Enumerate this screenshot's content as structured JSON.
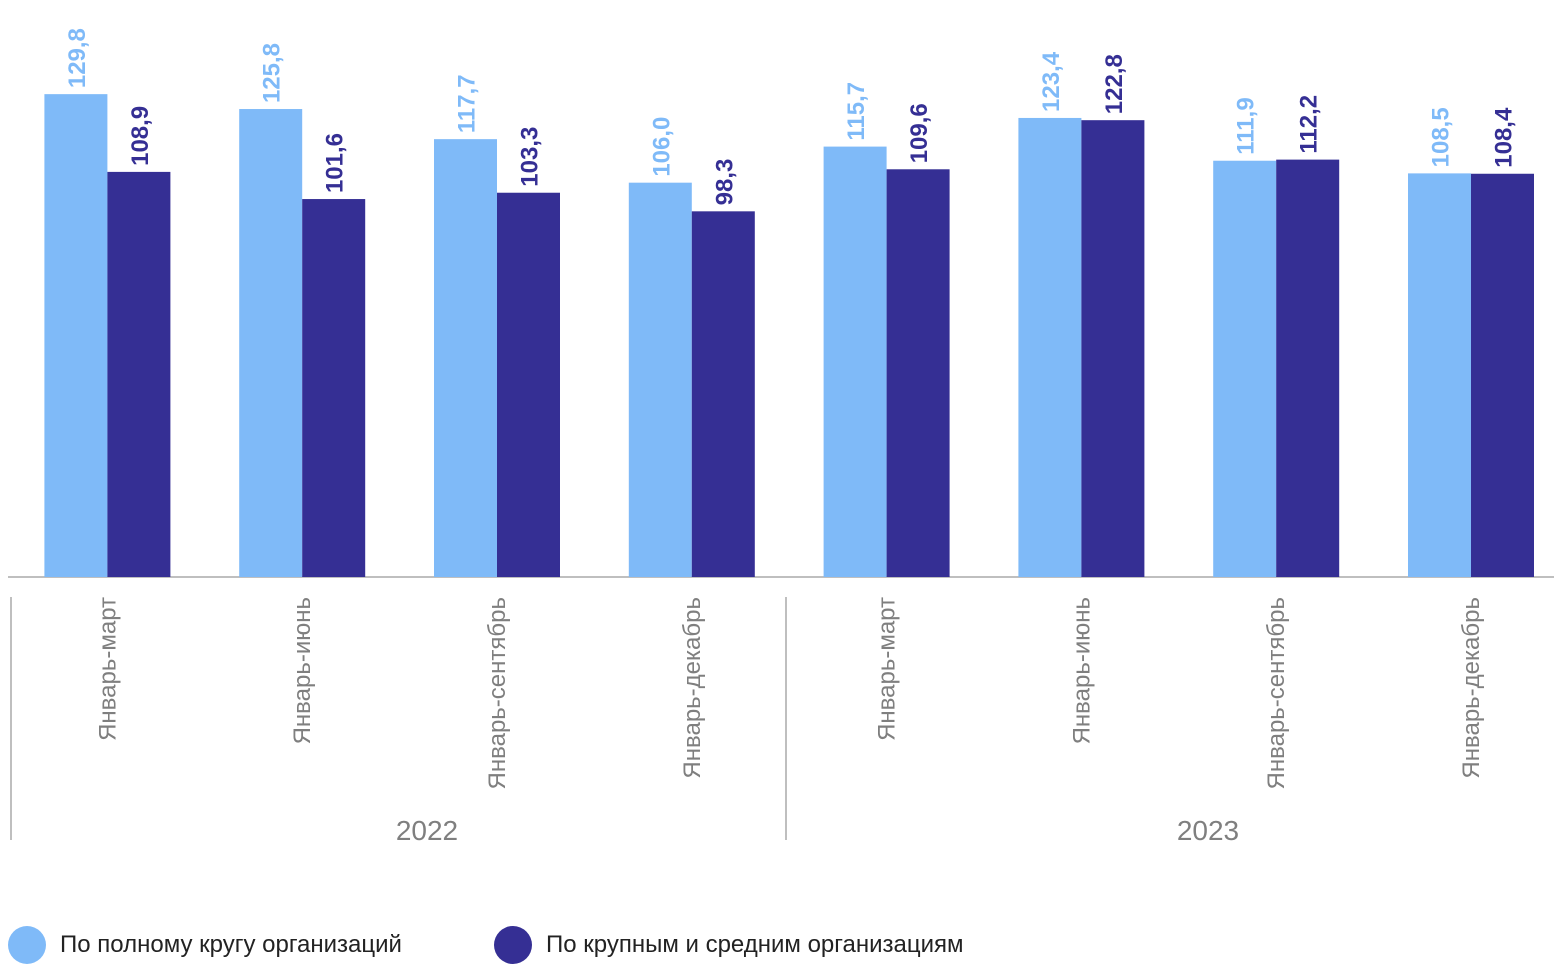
{
  "chart_data": {
    "type": "bar",
    "groups": [
      {
        "label": "2022",
        "categories": [
          "Январь-март",
          "Январь-июнь",
          "Январь-сентябрь",
          "Январь-декабрь"
        ]
      },
      {
        "label": "2023",
        "categories": [
          "Январь-март",
          "Январь-июнь",
          "Январь-сентябрь",
          "Январь-декабрь"
        ]
      }
    ],
    "categories": [
      "Январь-март",
      "Январь-июнь",
      "Январь-сентябрь",
      "Январь-декабрь",
      "Январь-март",
      "Январь-июнь",
      "Январь-сентябрь",
      "Январь-декабрь"
    ],
    "series": [
      {
        "name": "По полному кругу организаций",
        "color": "#7fbaf8",
        "values": [
          129.8,
          125.8,
          117.7,
          106.0,
          115.7,
          123.4,
          111.9,
          108.5
        ],
        "labels": [
          "129,8",
          "125,8",
          "117,7",
          "106,0",
          "115,7",
          "123,4",
          "111,9",
          "108,5"
        ]
      },
      {
        "name": "По крупным и средним организациям",
        "color": "#352f94",
        "values": [
          108.9,
          101.6,
          103.3,
          98.3,
          109.6,
          122.8,
          112.2,
          108.4
        ],
        "labels": [
          "108,9",
          "101,6",
          "103,3",
          "98,3",
          "109,6",
          "122,8",
          "112,2",
          "108,4"
        ]
      }
    ],
    "ylim": [
      0,
      130
    ],
    "grid": false,
    "legend_position": "bottom-left",
    "axis_line_color": "#bfbfbf",
    "category_label_color": "#7f7f7f"
  },
  "legend": {
    "items": [
      {
        "label": "По полному кругу организаций",
        "color": "#7fbaf8"
      },
      {
        "label": "По крупным и средним организациям",
        "color": "#352f94"
      }
    ]
  }
}
